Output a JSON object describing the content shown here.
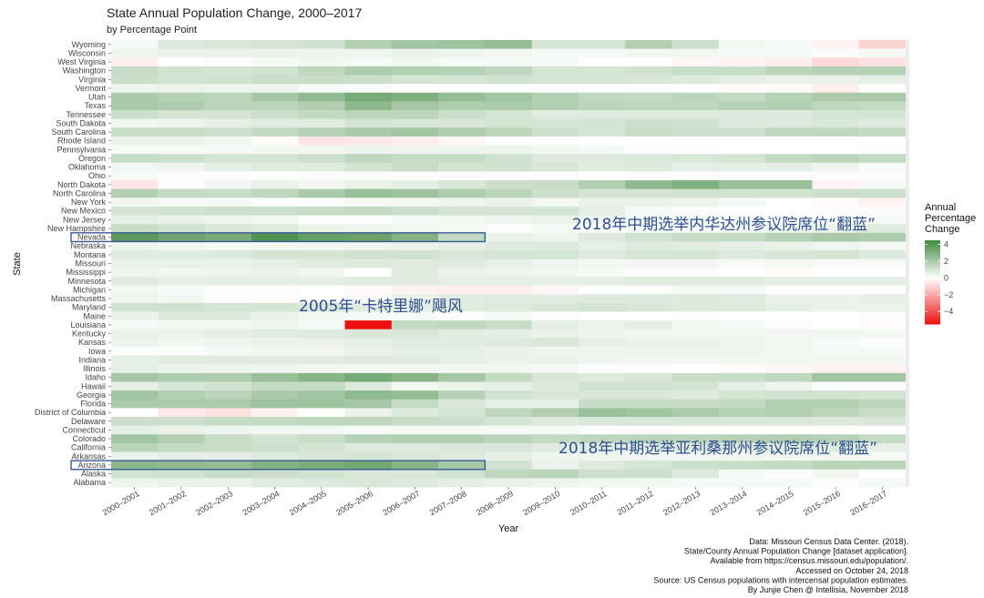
{
  "chart_data": {
    "type": "heatmap",
    "title": "State Annual Population Change, 2000–2017",
    "subtitle": "by Percentage Point",
    "xlabel": "Year",
    "ylabel": "State",
    "legend": {
      "title": [
        "Annual",
        "Percentage",
        "Change"
      ],
      "placement": "right",
      "range": [
        -5.5,
        4.5
      ],
      "ticks": [
        4,
        2,
        0,
        -2,
        -4
      ],
      "tick_labels": [
        "4",
        "2",
        "0",
        "−2",
        "−4"
      ],
      "colors": {
        "low": "#ee1111",
        "mid": "#ffffff",
        "high": "#3f883f"
      }
    },
    "x": [
      "2000–2001",
      "2001–2002",
      "2002–2003",
      "2003–2004",
      "2004–2005",
      "2005–2006",
      "2006–2007",
      "2007–2008",
      "2008–2009",
      "2009–2010",
      "2010–2011",
      "2011–2012",
      "2012–2013",
      "2013–2014",
      "2014–2015",
      "2015–2016",
      "2016–2017"
    ],
    "y": [
      "Wyoming",
      "Wisconsin",
      "West Virginia",
      "Washington",
      "Virginia",
      "Vermont",
      "Utah",
      "Texas",
      "Tennessee",
      "South Dakota",
      "South Carolina",
      "Rhode Island",
      "Pennsylvania",
      "Oregon",
      "Oklahoma",
      "Ohio",
      "North Dakota",
      "North Carolina",
      "New York",
      "New Mexico",
      "New Jersey",
      "New Hampshire",
      "Nevada",
      "Nebraska",
      "Montana",
      "Missouri",
      "Mississippi",
      "Minnesota",
      "Michigan",
      "Massachusetts",
      "Maryland",
      "Maine",
      "Louisiana",
      "Kentucky",
      "Kansas",
      "Iowa",
      "Indiana",
      "Illinois",
      "Idaho",
      "Hawaii",
      "Georgia",
      "Florida",
      "District of Columbia",
      "Delaware",
      "Connecticut",
      "Colorado",
      "California",
      "Arkansas",
      "Arizona",
      "Alaska",
      "Alabama"
    ],
    "values": [
      [
        0.2,
        0.8,
        0.9,
        1.0,
        1.1,
        1.8,
        2.2,
        2.3,
        2.5,
        1.0,
        1.0,
        1.8,
        1.2,
        0.3,
        0.2,
        -0.3,
        -1.0
      ],
      [
        0.4,
        0.5,
        0.5,
        0.5,
        0.4,
        0.4,
        0.5,
        0.4,
        0.3,
        0.2,
        0.2,
        0.3,
        0.3,
        0.2,
        0.2,
        0.1,
        0.2
      ],
      [
        -0.4,
        0.0,
        0.1,
        0.2,
        0.3,
        0.2,
        0.3,
        0.2,
        0.2,
        0.2,
        0.0,
        0.0,
        -0.2,
        -0.3,
        -0.4,
        -0.9,
        -0.7
      ],
      [
        1.3,
        1.1,
        1.0,
        1.1,
        1.5,
        1.9,
        1.8,
        1.7,
        1.5,
        1.0,
        1.0,
        1.1,
        1.3,
        1.3,
        1.6,
        1.7,
        1.7
      ],
      [
        1.2,
        1.1,
        1.1,
        1.2,
        1.3,
        1.2,
        1.0,
        1.0,
        1.1,
        1.0,
        1.0,
        0.9,
        0.8,
        0.6,
        0.5,
        0.5,
        0.6
      ],
      [
        0.4,
        0.5,
        0.4,
        0.4,
        0.2,
        0.1,
        0.0,
        0.1,
        0.1,
        0.1,
        0.1,
        0.1,
        0.0,
        -0.1,
        -0.1,
        -0.4,
        0.0
      ],
      [
        2.0,
        1.7,
        1.6,
        2.1,
        2.6,
        3.2,
        3.0,
        2.5,
        2.2,
        1.8,
        1.5,
        1.4,
        1.6,
        1.4,
        1.7,
        2.0,
        2.0
      ],
      [
        2.0,
        1.9,
        1.6,
        1.6,
        1.8,
        2.7,
        2.1,
        1.9,
        2.0,
        1.8,
        1.6,
        1.5,
        1.5,
        1.7,
        1.8,
        1.5,
        1.4
      ],
      [
        1.2,
        1.0,
        1.0,
        1.2,
        1.4,
        1.6,
        1.6,
        1.2,
        1.0,
        0.7,
        0.8,
        0.8,
        0.8,
        0.8,
        0.8,
        1.0,
        1.0
      ],
      [
        0.3,
        0.4,
        0.6,
        0.7,
        0.7,
        1.0,
        0.9,
        0.9,
        1.0,
        1.0,
        1.0,
        1.2,
        1.1,
        0.8,
        0.8,
        0.9,
        0.8
      ],
      [
        1.3,
        1.3,
        1.2,
        1.4,
        1.7,
        2.0,
        2.2,
        1.9,
        1.6,
        1.2,
        1.0,
        1.3,
        1.2,
        1.2,
        1.5,
        1.5,
        1.4
      ],
      [
        0.5,
        0.5,
        0.3,
        -0.1,
        -0.6,
        -0.5,
        -0.4,
        -0.2,
        0.0,
        0.1,
        0.0,
        0.0,
        0.1,
        0.1,
        0.1,
        0.1,
        0.0
      ],
      [
        0.2,
        0.2,
        0.2,
        0.3,
        0.3,
        0.4,
        0.4,
        0.4,
        0.4,
        0.3,
        0.2,
        0.1,
        0.1,
        0.0,
        0.0,
        0.0,
        0.1
      ],
      [
        1.3,
        1.2,
        1.0,
        1.0,
        1.2,
        1.5,
        1.3,
        1.3,
        1.1,
        0.8,
        0.8,
        0.8,
        0.9,
        1.0,
        1.4,
        1.6,
        1.4
      ],
      [
        0.3,
        0.4,
        0.6,
        0.7,
        0.7,
        1.0,
        1.3,
        1.0,
        1.1,
        0.9,
        0.7,
        0.8,
        0.6,
        0.6,
        0.6,
        0.4,
        0.2
      ],
      [
        0.2,
        0.1,
        0.1,
        0.0,
        0.1,
        0.1,
        0.1,
        0.1,
        0.1,
        0.1,
        0.0,
        0.1,
        0.1,
        0.1,
        0.1,
        0.1,
        0.1
      ],
      [
        -0.6,
        0.1,
        0.3,
        0.5,
        0.3,
        0.5,
        0.6,
        0.9,
        1.2,
        1.3,
        1.8,
        2.6,
        3.0,
        2.4,
        2.4,
        -0.3,
        0.2
      ],
      [
        1.8,
        1.4,
        1.3,
        1.5,
        2.0,
        2.4,
        2.3,
        1.9,
        1.6,
        1.2,
        1.0,
        1.0,
        1.1,
        1.1,
        1.1,
        1.2,
        1.2
      ],
      [
        0.3,
        0.2,
        0.2,
        0.1,
        0.1,
        0.2,
        0.3,
        0.4,
        0.5,
        0.3,
        0.5,
        0.5,
        0.4,
        0.2,
        0.0,
        -0.1,
        -0.3
      ],
      [
        1.0,
        1.1,
        1.2,
        1.2,
        1.3,
        1.4,
        1.2,
        1.0,
        1.0,
        1.0,
        0.6,
        0.2,
        0.1,
        0.0,
        0.0,
        0.1,
        0.1
      ],
      [
        0.6,
        0.5,
        0.4,
        0.3,
        0.1,
        0.1,
        0.2,
        0.3,
        0.4,
        0.5,
        0.4,
        0.3,
        0.3,
        0.2,
        0.1,
        0.1,
        0.2
      ],
      [
        1.3,
        1.1,
        0.9,
        0.8,
        0.5,
        0.4,
        0.3,
        0.2,
        0.1,
        0.2,
        0.1,
        0.2,
        0.2,
        0.3,
        0.4,
        0.5,
        0.7
      ],
      [
        3.8,
        3.4,
        3.2,
        4.1,
        3.6,
        3.5,
        2.9,
        1.4,
        0.5,
        0.4,
        0.8,
        1.1,
        1.3,
        1.4,
        1.7,
        2.0,
        1.9
      ],
      [
        0.4,
        0.3,
        0.2,
        0.3,
        0.3,
        0.4,
        0.5,
        0.6,
        0.8,
        0.8,
        0.6,
        0.8,
        0.7,
        0.6,
        0.5,
        0.4,
        0.3
      ],
      [
        0.7,
        0.7,
        0.8,
        1.0,
        1.0,
        1.1,
        1.1,
        0.9,
        1.0,
        1.0,
        0.8,
        1.0,
        1.0,
        0.8,
        0.9,
        1.0,
        0.8
      ],
      [
        0.5,
        0.5,
        0.5,
        0.6,
        0.7,
        0.8,
        0.8,
        0.7,
        0.6,
        0.4,
        0.3,
        0.3,
        0.3,
        0.2,
        0.3,
        0.2,
        0.2
      ],
      [
        0.4,
        0.3,
        0.4,
        0.5,
        0.3,
        0.0,
        0.7,
        0.5,
        0.4,
        0.3,
        0.2,
        0.1,
        0.1,
        0.0,
        -0.1,
        0.0,
        0.0
      ],
      [
        0.7,
        0.6,
        0.6,
        0.6,
        0.6,
        0.7,
        0.7,
        0.6,
        0.6,
        0.6,
        0.6,
        0.7,
        0.7,
        0.7,
        0.6,
        0.6,
        0.6
      ],
      [
        0.3,
        0.2,
        0.1,
        0.1,
        0.0,
        -0.1,
        -0.3,
        -0.4,
        -0.4,
        -0.2,
        0.0,
        0.1,
        0.2,
        0.2,
        0.1,
        0.1,
        0.1
      ],
      [
        0.4,
        0.3,
        0.1,
        -0.1,
        0.0,
        0.2,
        0.5,
        0.7,
        0.8,
        0.7,
        0.8,
        0.8,
        0.8,
        0.7,
        0.5,
        0.5,
        0.6
      ],
      [
        1.1,
        1.1,
        1.0,
        1.0,
        0.9,
        0.7,
        0.6,
        0.7,
        0.8,
        0.9,
        1.0,
        0.9,
        0.8,
        0.8,
        0.6,
        0.5,
        0.5
      ],
      [
        0.5,
        0.8,
        0.8,
        0.5,
        0.3,
        0.2,
        0.2,
        0.1,
        0.2,
        0.1,
        0.0,
        0.0,
        0.1,
        0.0,
        0.0,
        0.0,
        0.1
      ],
      [
        0.2,
        0.3,
        0.3,
        0.4,
        0.2,
        -5.5,
        1.4,
        1.5,
        1.3,
        0.6,
        0.5,
        0.6,
        0.3,
        0.2,
        0.1,
        0.0,
        -0.1
      ],
      [
        0.5,
        0.5,
        0.6,
        0.7,
        0.8,
        0.9,
        0.9,
        0.7,
        0.6,
        0.5,
        0.4,
        0.3,
        0.3,
        0.3,
        0.3,
        0.3,
        0.3
      ],
      [
        0.4,
        0.3,
        0.4,
        0.5,
        0.5,
        0.6,
        0.7,
        0.7,
        0.8,
        0.9,
        0.6,
        0.5,
        0.5,
        0.4,
        0.3,
        0.2,
        0.1
      ],
      [
        0.1,
        0.1,
        0.2,
        0.3,
        0.3,
        0.5,
        0.6,
        0.6,
        0.5,
        0.4,
        0.4,
        0.4,
        0.4,
        0.4,
        0.3,
        0.2,
        0.2
      ],
      [
        0.6,
        0.7,
        0.7,
        0.7,
        0.7,
        0.8,
        0.8,
        0.6,
        0.5,
        0.5,
        0.4,
        0.3,
        0.3,
        0.3,
        0.3,
        0.3,
        0.3
      ],
      [
        0.6,
        0.5,
        0.4,
        0.4,
        0.3,
        0.3,
        0.3,
        0.3,
        0.3,
        0.2,
        0.1,
        0.1,
        0.0,
        -0.1,
        -0.2,
        -0.3,
        -0.3
      ],
      [
        2.1,
        1.9,
        1.9,
        2.4,
        2.8,
        3.2,
        2.8,
        2.1,
        1.4,
        0.9,
        0.8,
        0.9,
        1.3,
        1.3,
        1.5,
        2.2,
        2.2
      ],
      [
        0.6,
        0.9,
        1.1,
        1.4,
        1.4,
        0.8,
        0.3,
        0.5,
        0.6,
        0.8,
        1.1,
        1.1,
        1.0,
        0.6,
        0.4,
        0.1,
        0.1
      ],
      [
        2.2,
        1.8,
        1.6,
        2.0,
        2.2,
        2.6,
        2.5,
        1.7,
        1.1,
        0.9,
        0.9,
        0.9,
        0.8,
        1.0,
        1.1,
        1.1,
        1.0
      ],
      [
        2.0,
        2.0,
        2.0,
        2.3,
        2.3,
        2.1,
        1.4,
        0.9,
        0.6,
        0.6,
        1.3,
        1.3,
        1.3,
        1.4,
        1.8,
        1.8,
        1.6
      ],
      [
        0.0,
        -0.5,
        -0.7,
        -0.3,
        0.0,
        0.5,
        0.8,
        1.0,
        1.5,
        1.8,
        2.4,
        2.2,
        2.0,
        1.7,
        1.8,
        1.6,
        1.3
      ],
      [
        1.2,
        1.2,
        1.3,
        1.4,
        1.5,
        1.5,
        1.3,
        1.2,
        1.0,
        0.8,
        0.9,
        0.9,
        0.9,
        0.9,
        0.9,
        0.8,
        0.9
      ],
      [
        0.6,
        0.5,
        0.4,
        0.3,
        0.3,
        0.2,
        0.2,
        0.2,
        0.2,
        0.2,
        0.1,
        0.1,
        0.0,
        0.0,
        0.0,
        0.0,
        0.0
      ],
      [
        2.2,
        1.8,
        1.3,
        1.1,
        1.3,
        1.7,
        1.8,
        1.8,
        1.6,
        1.4,
        1.5,
        1.6,
        1.6,
        1.7,
        1.8,
        1.7,
        1.4
      ],
      [
        1.6,
        1.4,
        1.3,
        1.2,
        1.0,
        0.8,
        0.8,
        0.9,
        0.9,
        0.7,
        0.8,
        0.8,
        0.8,
        0.8,
        0.8,
        0.7,
        0.6
      ],
      [
        0.5,
        0.6,
        0.6,
        0.8,
        0.9,
        1.0,
        0.9,
        0.8,
        0.6,
        0.4,
        0.4,
        0.3,
        0.3,
        0.3,
        0.3,
        0.3,
        0.2
      ],
      [
        2.7,
        2.6,
        2.5,
        2.9,
        3.1,
        3.3,
        2.8,
        2.1,
        1.1,
        0.5,
        0.8,
        1.0,
        1.2,
        1.3,
        1.4,
        1.6,
        1.6
      ],
      [
        1.1,
        1.1,
        1.3,
        1.2,
        1.1,
        0.9,
        0.9,
        1.1,
        1.5,
        1.6,
        1.2,
        1.2,
        0.8,
        0.2,
        0.1,
        0.3,
        0.0
      ],
      [
        0.4,
        0.5,
        0.5,
        0.7,
        0.8,
        0.9,
        0.8,
        0.6,
        0.5,
        0.4,
        0.3,
        0.3,
        0.2,
        0.2,
        0.2,
        0.1,
        0.2
      ]
    ],
    "annotations": [
      {
        "text": "2018年中期选举内华达州参议院席位“翻蓝”",
        "row": "Nevada",
        "from": "2000–2001",
        "to": "2007–2008"
      },
      {
        "text": "2005年“卡特里娜”飓风",
        "row": "Louisiana",
        "from": "2005–2006",
        "to": "2005–2006"
      },
      {
        "text": "2018年中期选举亚利桑那州参议院席位“翻蓝”",
        "row": "Arizona",
        "from": "2000–2001",
        "to": "2007–2008"
      }
    ],
    "caption": [
      "Data: Missouri Census Data Center. (2018).",
      "State/County Annual Population Change [dataset application].",
      "Available from https://census.missouri.edu/population/.",
      "Accessed on October 24, 2018",
      "Source: US Census populations with intercensal population estimates.",
      "By Junjie Chen @ Intellisia, November 2018"
    ]
  }
}
